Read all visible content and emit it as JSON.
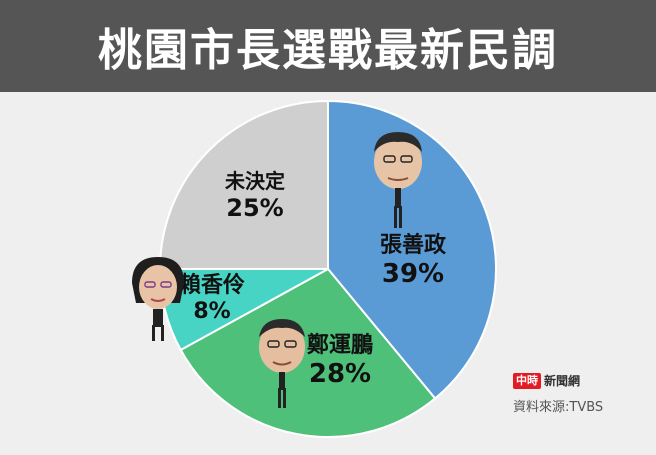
{
  "header": {
    "title": "桃園市長選戰最新民調"
  },
  "brand": {
    "badge": "中時",
    "name": "新聞網"
  },
  "source": "資料來源:TVBS",
  "colors": {
    "header_bg": "#555555",
    "background": "#efefef",
    "slice_blue": "#5b9bd5",
    "slice_green": "#4ec07a",
    "slice_teal": "#48d4c4",
    "slice_gray": "#cfcfcf"
  },
  "chart_data": {
    "type": "pie",
    "title": "桃園市長選戰最新民調",
    "start_angle_deg": 0,
    "direction": "clockwise",
    "slices": [
      {
        "name": "張善政",
        "value": 39,
        "label": "39%",
        "color": "#5b9bd5",
        "icon": "zhang-shan-cheng-portrait"
      },
      {
        "name": "鄭運鵬",
        "value": 28,
        "label": "28%",
        "color": "#4ec07a",
        "icon": "cheng-yun-peng-portrait"
      },
      {
        "name": "賴香伶",
        "value": 8,
        "label": "8%",
        "color": "#48d4c4",
        "icon": "lai-hsiang-ling-portrait"
      },
      {
        "name": "未決定",
        "value": 25,
        "label": "25%",
        "color": "#cfcfcf"
      }
    ]
  }
}
